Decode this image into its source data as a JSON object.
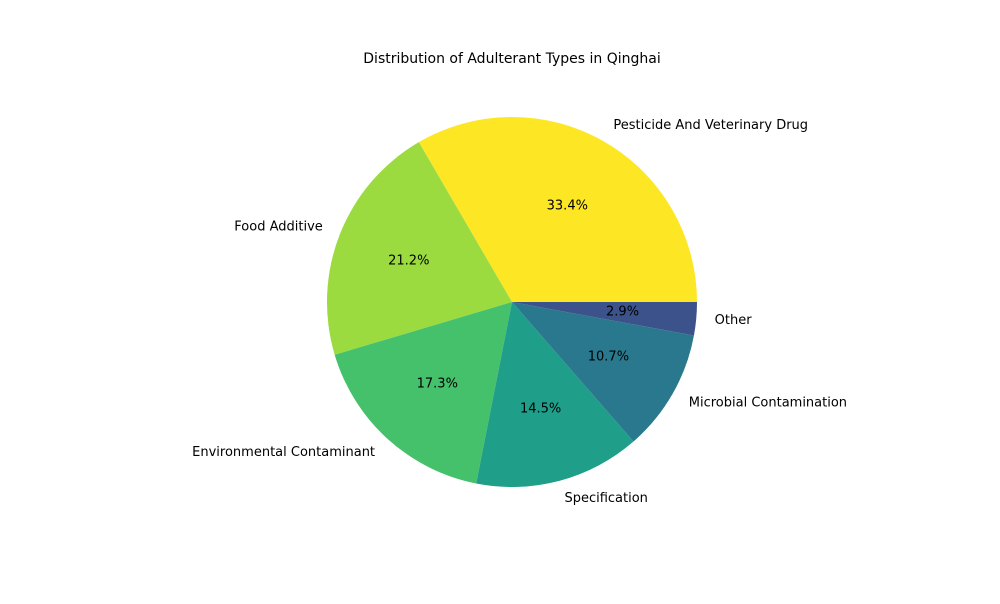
{
  "chart_data": {
    "type": "pie",
    "title": "Distribution of Adulterant Types in Qinghai",
    "slices": [
      {
        "label": "Pesticide And Veterinary Drug",
        "value": 33.4,
        "pct_label": "33.4%",
        "color": "#fde725"
      },
      {
        "label": "Food Additive",
        "value": 21.2,
        "pct_label": "21.2%",
        "color": "#9bdb3f"
      },
      {
        "label": "Environmental Contaminant",
        "value": 17.3,
        "pct_label": "17.3%",
        "color": "#45c16c"
      },
      {
        "label": "Specification",
        "value": 14.5,
        "pct_label": "14.5%",
        "color": "#1f9e8a"
      },
      {
        "label": "Microbial Contamination",
        "value": 10.7,
        "pct_label": "10.7%",
        "color": "#2a788e"
      },
      {
        "label": "Other",
        "value": 2.9,
        "pct_label": "2.9%",
        "color": "#3b528b"
      }
    ],
    "start_angle": "0",
    "direction": "counterclockwise"
  }
}
